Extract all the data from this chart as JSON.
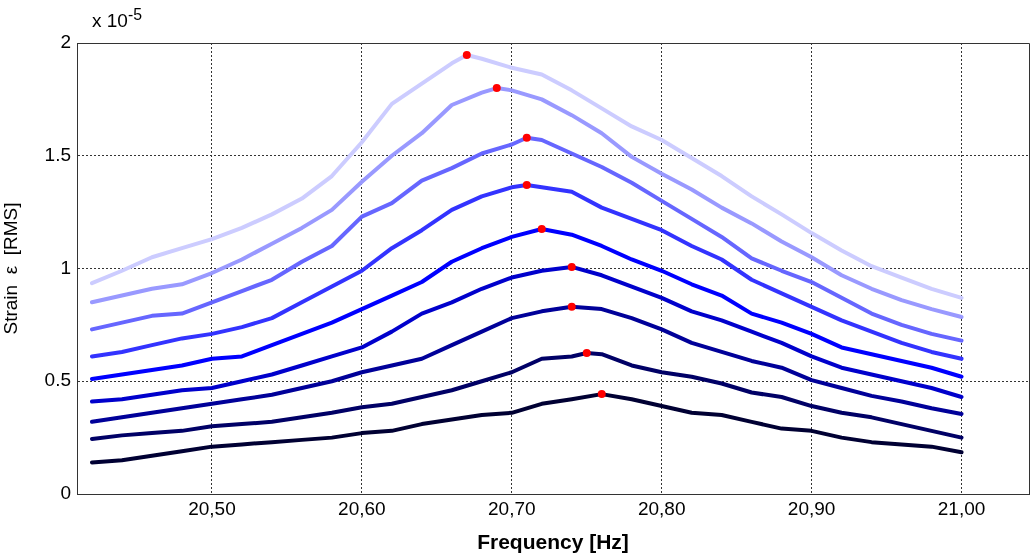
{
  "chart_data": {
    "type": "line",
    "xlabel": "Frequency [Hz]",
    "ylabel": "Strain  ε  [RMS]",
    "annotations": [
      "x 10$^{-5}$"
    ],
    "xlim": [
      20.41,
      21.045
    ],
    "ylim": [
      0,
      2
    ],
    "xticks": [
      {
        "value": 20.5,
        "label": "20,50"
      },
      {
        "value": 20.6,
        "label": "20,60"
      },
      {
        "value": 20.7,
        "label": "20,70"
      },
      {
        "value": 20.8,
        "label": "20,80"
      },
      {
        "value": 20.9,
        "label": "20,90"
      },
      {
        "value": 21.0,
        "label": "21,00"
      }
    ],
    "yticks": [
      0,
      0.5,
      1,
      1.5,
      2
    ],
    "grid": true,
    "legend": false,
    "marker": "none",
    "line_style": "solid",
    "series": [
      {
        "color": "#ccccff",
        "x": [
          20.42,
          20.44,
          20.46,
          20.48,
          20.5,
          20.52,
          20.54,
          20.56,
          20.58,
          20.6,
          20.62,
          20.64,
          20.66,
          20.67,
          20.68,
          20.7,
          20.72,
          20.74,
          20.76,
          20.78,
          20.8,
          20.82,
          20.84,
          20.86,
          20.88,
          20.9,
          20.92,
          20.94,
          20.96,
          20.98,
          21.0
        ],
        "values": [
          0.935,
          0.99,
          1.05,
          1.09,
          1.13,
          1.18,
          1.24,
          1.31,
          1.41,
          1.56,
          1.73,
          1.82,
          1.91,
          1.947,
          1.93,
          1.89,
          1.86,
          1.79,
          1.71,
          1.63,
          1.57,
          1.49,
          1.41,
          1.32,
          1.24,
          1.157,
          1.08,
          1.01,
          0.96,
          0.91,
          0.87
        ]
      },
      {
        "color": "#9999ff",
        "x": [
          20.42,
          20.44,
          20.46,
          20.48,
          20.5,
          20.52,
          20.54,
          20.56,
          20.58,
          20.6,
          20.62,
          20.64,
          20.66,
          20.68,
          20.69,
          20.7,
          20.72,
          20.74,
          20.76,
          20.78,
          20.8,
          20.82,
          20.84,
          20.86,
          20.88,
          20.9,
          20.92,
          20.94,
          20.96,
          20.98,
          21.0
        ],
        "values": [
          0.85,
          0.88,
          0.91,
          0.93,
          0.98,
          1.04,
          1.11,
          1.18,
          1.26,
          1.385,
          1.5,
          1.6,
          1.725,
          1.78,
          1.8,
          1.79,
          1.75,
          1.68,
          1.6,
          1.495,
          1.42,
          1.35,
          1.27,
          1.2,
          1.12,
          1.05,
          0.97,
          0.91,
          0.86,
          0.82,
          0.785
        ]
      },
      {
        "color": "#6666ff",
        "x": [
          20.42,
          20.44,
          20.46,
          20.48,
          20.5,
          20.52,
          20.54,
          20.56,
          20.58,
          20.6,
          20.62,
          20.64,
          20.66,
          20.68,
          20.7,
          20.71,
          20.72,
          20.74,
          20.76,
          20.78,
          20.8,
          20.82,
          20.84,
          20.86,
          20.88,
          20.9,
          20.92,
          20.94,
          20.96,
          20.98,
          21.0
        ],
        "values": [
          0.73,
          0.76,
          0.79,
          0.8,
          0.85,
          0.9,
          0.95,
          1.03,
          1.1,
          1.23,
          1.29,
          1.39,
          1.445,
          1.51,
          1.55,
          1.58,
          1.57,
          1.51,
          1.45,
          1.38,
          1.3,
          1.22,
          1.14,
          1.045,
          0.99,
          0.94,
          0.87,
          0.8,
          0.75,
          0.71,
          0.68
        ]
      },
      {
        "color": "#3333ff",
        "x": [
          20.42,
          20.44,
          20.46,
          20.48,
          20.5,
          20.52,
          20.54,
          20.56,
          20.58,
          20.6,
          20.62,
          20.64,
          20.66,
          20.68,
          20.7,
          20.71,
          20.72,
          20.74,
          20.76,
          20.78,
          20.8,
          20.82,
          20.84,
          20.86,
          20.88,
          20.9,
          20.92,
          20.94,
          20.96,
          20.98,
          21.0
        ],
        "values": [
          0.61,
          0.63,
          0.66,
          0.69,
          0.71,
          0.74,
          0.78,
          0.85,
          0.92,
          0.99,
          1.09,
          1.17,
          1.26,
          1.32,
          1.36,
          1.37,
          1.36,
          1.34,
          1.27,
          1.22,
          1.17,
          1.1,
          1.04,
          0.95,
          0.89,
          0.83,
          0.77,
          0.72,
          0.67,
          0.63,
          0.6
        ]
      },
      {
        "color": "#0000ff",
        "x": [
          20.42,
          20.44,
          20.46,
          20.48,
          20.5,
          20.52,
          20.54,
          20.56,
          20.58,
          20.6,
          20.62,
          20.64,
          20.66,
          20.68,
          20.7,
          20.72,
          20.74,
          20.76,
          20.78,
          20.8,
          20.82,
          20.84,
          20.86,
          20.88,
          20.9,
          20.92,
          20.94,
          20.96,
          20.98,
          21.0
        ],
        "values": [
          0.51,
          0.53,
          0.55,
          0.57,
          0.6,
          0.61,
          0.66,
          0.71,
          0.76,
          0.82,
          0.88,
          0.94,
          1.03,
          1.09,
          1.14,
          1.175,
          1.15,
          1.1,
          1.04,
          0.99,
          0.93,
          0.88,
          0.8,
          0.76,
          0.71,
          0.65,
          0.62,
          0.59,
          0.56,
          0.52
        ]
      },
      {
        "color": "#0000cc",
        "x": [
          20.42,
          20.44,
          20.46,
          20.48,
          20.5,
          20.52,
          20.54,
          20.56,
          20.58,
          20.6,
          20.62,
          20.64,
          20.66,
          20.68,
          20.7,
          20.72,
          20.74,
          20.76,
          20.78,
          20.8,
          20.82,
          20.84,
          20.86,
          20.88,
          20.9,
          20.92,
          20.94,
          20.96,
          20.98,
          21.0
        ],
        "values": [
          0.41,
          0.42,
          0.44,
          0.46,
          0.47,
          0.5,
          0.53,
          0.57,
          0.61,
          0.65,
          0.72,
          0.8,
          0.85,
          0.91,
          0.96,
          0.99,
          1.007,
          0.97,
          0.92,
          0.87,
          0.81,
          0.77,
          0.72,
          0.67,
          0.61,
          0.56,
          0.53,
          0.5,
          0.47,
          0.43
        ]
      },
      {
        "color": "#000099",
        "x": [
          20.42,
          20.44,
          20.46,
          20.48,
          20.5,
          20.52,
          20.54,
          20.56,
          20.58,
          20.6,
          20.62,
          20.64,
          20.66,
          20.68,
          20.7,
          20.72,
          20.74,
          20.76,
          20.78,
          20.8,
          20.82,
          20.84,
          20.86,
          20.88,
          20.9,
          20.92,
          20.94,
          20.96,
          20.98,
          21.0
        ],
        "values": [
          0.32,
          0.34,
          0.36,
          0.38,
          0.4,
          0.42,
          0.44,
          0.47,
          0.5,
          0.54,
          0.57,
          0.6,
          0.66,
          0.72,
          0.78,
          0.81,
          0.83,
          0.82,
          0.78,
          0.73,
          0.67,
          0.63,
          0.59,
          0.56,
          0.505,
          0.47,
          0.435,
          0.41,
          0.38,
          0.355
        ]
      },
      {
        "color": "#000066",
        "x": [
          20.42,
          20.44,
          20.46,
          20.48,
          20.5,
          20.52,
          20.54,
          20.56,
          20.58,
          20.6,
          20.62,
          20.64,
          20.66,
          20.68,
          20.7,
          20.72,
          20.74,
          20.75,
          20.76,
          20.78,
          20.8,
          20.82,
          20.84,
          20.86,
          20.88,
          20.9,
          20.92,
          20.94,
          20.96,
          20.98,
          21.0
        ],
        "values": [
          0.244,
          0.26,
          0.27,
          0.28,
          0.3,
          0.31,
          0.32,
          0.34,
          0.36,
          0.385,
          0.4,
          0.43,
          0.46,
          0.5,
          0.54,
          0.6,
          0.61,
          0.625,
          0.62,
          0.57,
          0.54,
          0.52,
          0.49,
          0.45,
          0.43,
          0.39,
          0.36,
          0.34,
          0.31,
          0.28,
          0.25
        ]
      },
      {
        "color": "#000033",
        "x": [
          20.42,
          20.44,
          20.46,
          20.48,
          20.5,
          20.52,
          20.54,
          20.56,
          20.58,
          20.6,
          20.62,
          20.64,
          20.66,
          20.68,
          20.7,
          20.72,
          20.74,
          20.76,
          20.78,
          20.8,
          20.82,
          20.84,
          20.86,
          20.88,
          20.9,
          20.92,
          20.94,
          20.96,
          20.98,
          21.0
        ],
        "values": [
          0.14,
          0.15,
          0.17,
          0.19,
          0.21,
          0.22,
          0.23,
          0.24,
          0.25,
          0.27,
          0.28,
          0.31,
          0.33,
          0.35,
          0.36,
          0.4,
          0.42,
          0.443,
          0.42,
          0.39,
          0.36,
          0.35,
          0.32,
          0.29,
          0.28,
          0.25,
          0.23,
          0.22,
          0.21,
          0.185
        ]
      },
      {
        "type": "scatter",
        "marker": "circle",
        "color": "#ff0000",
        "x": [
          20.67,
          20.69,
          20.71,
          20.71,
          20.72,
          20.74,
          20.74,
          20.75,
          20.76
        ],
        "values": [
          1.947,
          1.8,
          1.58,
          1.37,
          1.175,
          1.007,
          0.83,
          0.625,
          0.443
        ]
      }
    ]
  }
}
